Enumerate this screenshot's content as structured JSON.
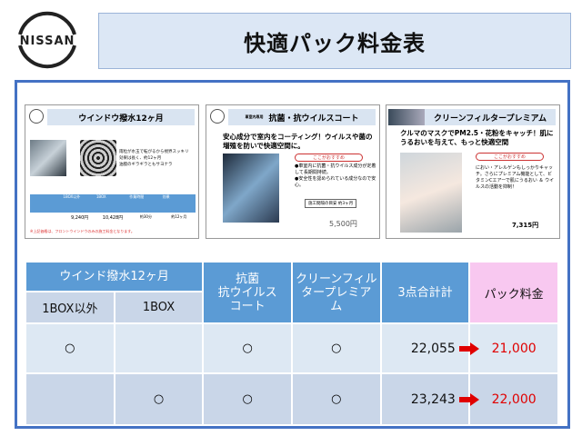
{
  "brand": {
    "logo_text": "NISSAN"
  },
  "header": {
    "title": "快適パック料金表"
  },
  "cards": [
    {
      "title": "ウインドウ撥水12ヶ月",
      "bullets": [
        "雨粒が水玉で転がるから視界スッキリ",
        "効果は長く、約12ヶ月",
        "油膜のギラギラともサヨナラ"
      ],
      "table_headers": [
        "1BOX以外",
        "1BOX",
        "作業時間",
        "効果"
      ],
      "table_values": [
        "9,240円",
        "10,428円",
        "約30分",
        "約12ヶ月"
      ],
      "note": "※上記価格は、フロントウインドウのみの施工料金となります。"
    },
    {
      "subtitle": "車室内専用",
      "title": "抗菌・抗ウイルスコート",
      "headline": "安心成分で室内をコーティング！ウイルスや菌の増殖を防いで快適空間に。",
      "recommend": "ここがおすすめ",
      "bullets": [
        "●車室内に抗菌・抗ウイルス成分が定着して長期間持続。",
        "●安全性を認められている成分なので安心。"
      ],
      "duration": "施工間隔の目安 約3ヶ月",
      "price": "5,500円"
    },
    {
      "title": "クリーンフィルタープレミアム",
      "headline": "クルマのマスクでPM2.5・花粉をキャッチ！肌にうるおいを与えて、もっと快適空間",
      "recommend": "ここがおすすめ",
      "body": "におい・アレルゲンもしっかりキャッチ。さらにプレミアム機能として、ビタミンCエアーで肌にうるおい ＆ ウイルスの活動を抑制！",
      "price": "7,315円"
    }
  ],
  "table": {
    "group_header": "ウインド撥水12ヶ月",
    "sub_headers": [
      "1BOX以外",
      "1BOX"
    ],
    "col_coat": "抗菌\n抗ウイルス\nコート",
    "col_filter": "クリーンフィル\nタープレミア\nム",
    "col_total": "3点合計計",
    "col_pack": "パック料金",
    "rows": [
      {
        "non_1box": "○",
        "box": "",
        "coat": "○",
        "filter": "○",
        "total": "22,055",
        "pack": "21,000"
      },
      {
        "non_1box": "",
        "box": "○",
        "coat": "○",
        "filter": "○",
        "total": "23,243",
        "pack": "22,000"
      }
    ]
  },
  "colors": {
    "frame": "#4472c4",
    "header": "#5b9bd5",
    "pack_header": "#f8c8f0",
    "price": "#e00000"
  }
}
